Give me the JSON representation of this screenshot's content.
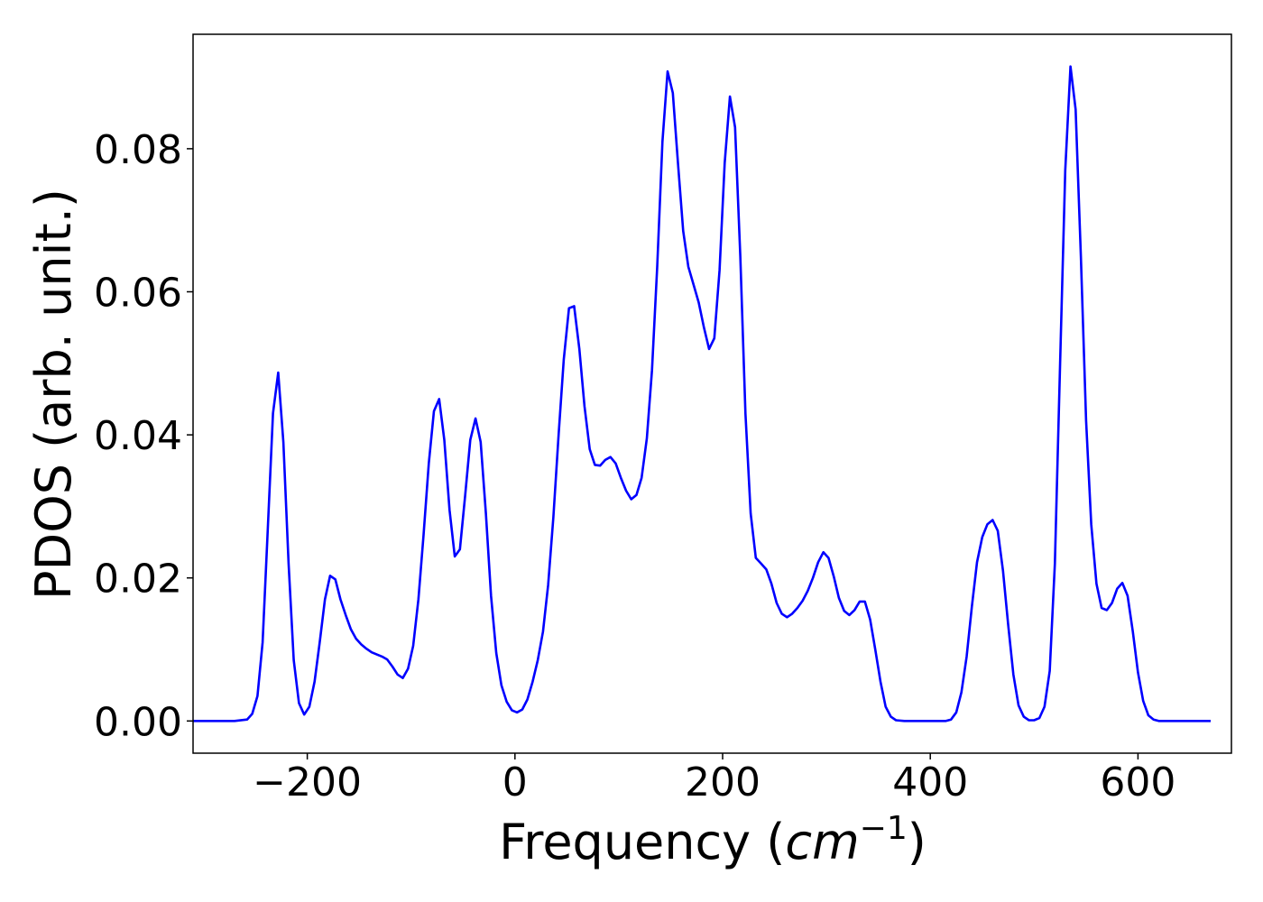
{
  "chart_data": {
    "type": "line",
    "xlabel": "Frequency (cm⁻¹)",
    "xlabel_parts": {
      "prefix": "Frequency (",
      "unit_base": "cm",
      "unit_exp": "−1",
      "suffix": ")"
    },
    "ylabel": "PDOS (arb. unit.)",
    "xlim": [
      -310,
      690
    ],
    "ylim": [
      -0.0045,
      0.096
    ],
    "x_ticks": [
      -200,
      0,
      200,
      400,
      600
    ],
    "x_tick_labels": [
      "−200",
      "0",
      "200",
      "400",
      "600"
    ],
    "y_ticks": [
      0.0,
      0.02,
      0.04,
      0.06,
      0.08
    ],
    "y_tick_labels": [
      "0.00",
      "0.02",
      "0.04",
      "0.06",
      "0.08"
    ],
    "grid": false,
    "series": [
      {
        "color": "#0000ff",
        "points": [
          [
            -310,
            0.0
          ],
          [
            -290,
            0.0
          ],
          [
            -270,
            0.0
          ],
          [
            -258,
            0.0002
          ],
          [
            -253,
            0.001
          ],
          [
            -248,
            0.0035
          ],
          [
            -243,
            0.011
          ],
          [
            -238,
            0.027
          ],
          [
            -233,
            0.043
          ],
          [
            -228,
            0.0487
          ],
          [
            -223,
            0.039
          ],
          [
            -218,
            0.022
          ],
          [
            -213,
            0.0085
          ],
          [
            -208,
            0.0025
          ],
          [
            -203,
            0.0009
          ],
          [
            -198,
            0.002
          ],
          [
            -193,
            0.0055
          ],
          [
            -188,
            0.011
          ],
          [
            -183,
            0.017
          ],
          [
            -178,
            0.0203
          ],
          [
            -173,
            0.0198
          ],
          [
            -168,
            0.017
          ],
          [
            -163,
            0.0148
          ],
          [
            -158,
            0.0128
          ],
          [
            -153,
            0.0115
          ],
          [
            -148,
            0.0107
          ],
          [
            -143,
            0.0101
          ],
          [
            -138,
            0.0096
          ],
          [
            -133,
            0.0093
          ],
          [
            -128,
            0.009
          ],
          [
            -123,
            0.0086
          ],
          [
            -118,
            0.0076
          ],
          [
            -113,
            0.0065
          ],
          [
            -108,
            0.006
          ],
          [
            -103,
            0.0073
          ],
          [
            -98,
            0.0105
          ],
          [
            -93,
            0.017
          ],
          [
            -88,
            0.026
          ],
          [
            -83,
            0.036
          ],
          [
            -78,
            0.0433
          ],
          [
            -73,
            0.045
          ],
          [
            -68,
            0.0393
          ],
          [
            -63,
            0.0295
          ],
          [
            -58,
            0.023
          ],
          [
            -53,
            0.024
          ],
          [
            -48,
            0.0315
          ],
          [
            -43,
            0.0393
          ],
          [
            -38,
            0.0423
          ],
          [
            -33,
            0.039
          ],
          [
            -28,
            0.029
          ],
          [
            -23,
            0.0175
          ],
          [
            -18,
            0.0095
          ],
          [
            -13,
            0.005
          ],
          [
            -8,
            0.0027
          ],
          [
            -3,
            0.0015
          ],
          [
            2,
            0.0012
          ],
          [
            7,
            0.0016
          ],
          [
            12,
            0.003
          ],
          [
            17,
            0.0055
          ],
          [
            22,
            0.0085
          ],
          [
            27,
            0.0125
          ],
          [
            32,
            0.019
          ],
          [
            37,
            0.0285
          ],
          [
            42,
            0.04
          ],
          [
            47,
            0.0505
          ],
          [
            52,
            0.0577
          ],
          [
            57,
            0.058
          ],
          [
            62,
            0.052
          ],
          [
            67,
            0.044
          ],
          [
            72,
            0.038
          ],
          [
            77,
            0.0358
          ],
          [
            82,
            0.0357
          ],
          [
            87,
            0.0365
          ],
          [
            92,
            0.0369
          ],
          [
            97,
            0.036
          ],
          [
            102,
            0.034
          ],
          [
            107,
            0.0322
          ],
          [
            112,
            0.031
          ],
          [
            117,
            0.0316
          ],
          [
            122,
            0.034
          ],
          [
            127,
            0.0395
          ],
          [
            132,
            0.049
          ],
          [
            137,
            0.0635
          ],
          [
            142,
            0.081
          ],
          [
            147,
            0.0908
          ],
          [
            152,
            0.0878
          ],
          [
            157,
            0.078
          ],
          [
            162,
            0.0685
          ],
          [
            167,
            0.0635
          ],
          [
            172,
            0.061
          ],
          [
            177,
            0.0585
          ],
          [
            182,
            0.055
          ],
          [
            187,
            0.052
          ],
          [
            192,
            0.0535
          ],
          [
            197,
            0.063
          ],
          [
            202,
            0.078
          ],
          [
            207,
            0.0873
          ],
          [
            212,
            0.083
          ],
          [
            217,
            0.065
          ],
          [
            222,
            0.043
          ],
          [
            227,
            0.029
          ],
          [
            232,
            0.0228
          ],
          [
            237,
            0.022
          ],
          [
            242,
            0.0212
          ],
          [
            247,
            0.0192
          ],
          [
            252,
            0.0165
          ],
          [
            257,
            0.015
          ],
          [
            262,
            0.0145
          ],
          [
            267,
            0.015
          ],
          [
            272,
            0.0158
          ],
          [
            277,
            0.0168
          ],
          [
            282,
            0.0182
          ],
          [
            287,
            0.02
          ],
          [
            292,
            0.0222
          ],
          [
            297,
            0.0236
          ],
          [
            302,
            0.0228
          ],
          [
            307,
            0.0202
          ],
          [
            312,
            0.0172
          ],
          [
            317,
            0.0154
          ],
          [
            322,
            0.0148
          ],
          [
            327,
            0.0155
          ],
          [
            332,
            0.0167
          ],
          [
            337,
            0.0167
          ],
          [
            342,
            0.0142
          ],
          [
            347,
            0.01
          ],
          [
            352,
            0.0055
          ],
          [
            357,
            0.002
          ],
          [
            362,
            0.0006
          ],
          [
            367,
            0.0001
          ],
          [
            375,
            0.0
          ],
          [
            390,
            0.0
          ],
          [
            405,
            0.0
          ],
          [
            415,
            0.0
          ],
          [
            420,
            0.0002
          ],
          [
            425,
            0.0012
          ],
          [
            430,
            0.004
          ],
          [
            435,
            0.009
          ],
          [
            440,
            0.016
          ],
          [
            445,
            0.0222
          ],
          [
            450,
            0.0257
          ],
          [
            455,
            0.0275
          ],
          [
            460,
            0.0281
          ],
          [
            465,
            0.0266
          ],
          [
            470,
            0.021
          ],
          [
            475,
            0.0135
          ],
          [
            480,
            0.0065
          ],
          [
            485,
            0.0022
          ],
          [
            490,
            0.0006
          ],
          [
            495,
            0.0001
          ],
          [
            500,
            0.0001
          ],
          [
            505,
            0.0004
          ],
          [
            510,
            0.002
          ],
          [
            515,
            0.007
          ],
          [
            520,
            0.022
          ],
          [
            525,
            0.05
          ],
          [
            530,
            0.077
          ],
          [
            535,
            0.0915
          ],
          [
            540,
            0.0855
          ],
          [
            545,
            0.065
          ],
          [
            550,
            0.042
          ],
          [
            555,
            0.0275
          ],
          [
            560,
            0.0192
          ],
          [
            565,
            0.0158
          ],
          [
            570,
            0.0155
          ],
          [
            575,
            0.0165
          ],
          [
            580,
            0.0185
          ],
          [
            585,
            0.0193
          ],
          [
            590,
            0.0175
          ],
          [
            595,
            0.0125
          ],
          [
            600,
            0.0068
          ],
          [
            605,
            0.0028
          ],
          [
            610,
            0.0008
          ],
          [
            615,
            0.0002
          ],
          [
            620,
            0.0
          ],
          [
            640,
            0.0
          ],
          [
            660,
            0.0
          ],
          [
            670,
            0.0
          ]
        ]
      }
    ]
  }
}
